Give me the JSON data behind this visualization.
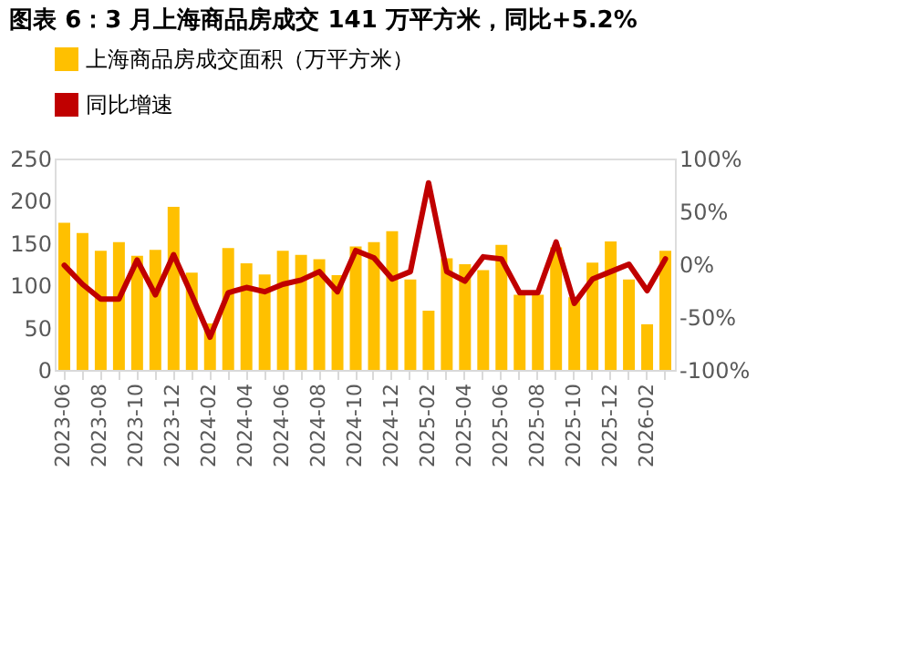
{
  "chart_data": {
    "type": "bar",
    "title": "图表 6：3 月上海商品房成交 141 万平方米，同比+5.2%",
    "categories": [
      "2023-06",
      null,
      "2023-08",
      null,
      "2023-10",
      null,
      "2023-12",
      null,
      "2024-02",
      null,
      "2024-04",
      null,
      "2024-06",
      null,
      "2024-08",
      null,
      "2024-10",
      null,
      "2024-12",
      null,
      "2025-02",
      null,
      "2025-04",
      null,
      "2025-06",
      null,
      "2025-08",
      null,
      "2025-10",
      null,
      "2025-12",
      null,
      "2026-02",
      null
    ],
    "series": [
      {
        "name": "上海商品房成交面积（万平方米）",
        "color": "#ffc000",
        "values": [
          174,
          162,
          141,
          151,
          135,
          142,
          193,
          115,
          55,
          144,
          126,
          113,
          141,
          136,
          131,
          112,
          146,
          151,
          164,
          107,
          70,
          132,
          125,
          118,
          148,
          89,
          89,
          145,
          86,
          127,
          152,
          107,
          54,
          141
        ]
      },
      {
        "name": "同比增速",
        "color": "#c00000",
        "type": "line",
        "axis": "y2",
        "values": [
          -1,
          -19,
          -33,
          -33,
          4,
          -29,
          9,
          -29,
          -69,
          -27,
          -22,
          -26,
          -19,
          -15,
          -7,
          -26,
          13,
          6,
          -14,
          -7,
          77,
          -7,
          -16,
          7,
          5,
          -27,
          -27,
          21,
          -37,
          -14,
          -7,
          0,
          -25,
          5
        ]
      }
    ],
    "ylim": [
      0,
      250
    ],
    "yticks": [
      0,
      50,
      100,
      150,
      200,
      250
    ],
    "y2lim": [
      -100,
      100
    ],
    "y2ticks": [
      {
        "value": -100,
        "label": "-100%"
      },
      {
        "value": -50,
        "label": "-50%"
      },
      {
        "value": 0,
        "label": "0%"
      },
      {
        "value": 50,
        "label": "50%"
      },
      {
        "value": 100,
        "label": "100%"
      }
    ],
    "legend": "top",
    "grid": false
  }
}
